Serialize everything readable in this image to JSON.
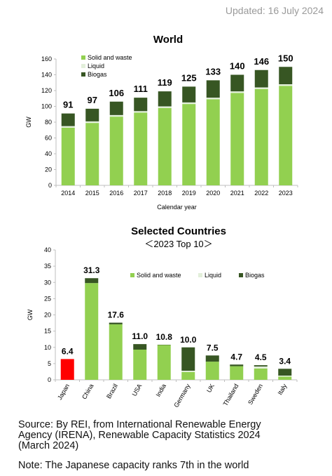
{
  "updated": "Updated: 16 July 2024",
  "colors": {
    "solid": "#92d050",
    "liquid": "#e2efda",
    "biogas": "#375623",
    "japan": "#ff0000",
    "axis": "#bfbfbf"
  },
  "chart_data": [
    {
      "type": "bar",
      "stacked": true,
      "title": "World",
      "xlabel": "Calendar year",
      "ylabel": "GW",
      "ylim": [
        0,
        160
      ],
      "yticks": [
        0,
        20,
        40,
        60,
        80,
        100,
        120,
        140,
        160
      ],
      "categories": [
        "2014",
        "2015",
        "2016",
        "2017",
        "2018",
        "2019",
        "2020",
        "2021",
        "2022",
        "2023"
      ],
      "series": [
        {
          "name": "Solid and waste",
          "values": [
            73,
            79,
            87,
            92,
            98,
            103,
            109,
            117,
            122,
            126
          ]
        },
        {
          "name": "Liquid",
          "values": [
            2,
            2,
            2,
            2,
            2,
            2,
            2,
            2,
            2,
            2
          ]
        },
        {
          "name": "Biogas",
          "values": [
            16,
            16,
            17,
            17,
            19,
            20,
            22,
            21,
            22,
            22
          ]
        }
      ],
      "totals": [
        "91",
        "97",
        "106",
        "111",
        "119",
        "125",
        "133",
        "140",
        "146",
        "150"
      ],
      "legend": "top-left"
    },
    {
      "type": "bar",
      "stacked": true,
      "title": "Selected Countries",
      "subtitle": "＜2023 Top 10＞",
      "xlabel": "",
      "ylabel": "GW",
      "ylim": [
        0,
        40
      ],
      "yticks": [
        0,
        5,
        10,
        15,
        20,
        25,
        30,
        35,
        40
      ],
      "categories": [
        "Japan",
        "China",
        "Brazil",
        "USA",
        "India",
        "Germany",
        "UK",
        "Thailand",
        "Sweden",
        "Italy"
      ],
      "series": [
        {
          "name": "Solid and waste",
          "values": [
            6.4,
            29.8,
            17.1,
            9.3,
            10.7,
            2.4,
            5.6,
            4.2,
            3.5,
            1.0
          ]
        },
        {
          "name": "Liquid",
          "values": [
            0,
            0,
            0,
            0,
            0,
            0.4,
            0,
            0,
            0.6,
            0.3
          ]
        },
        {
          "name": "Biogas",
          "values": [
            0,
            1.5,
            0.5,
            1.7,
            0.1,
            7.2,
            1.9,
            0.5,
            0.4,
            2.1
          ]
        }
      ],
      "totals": [
        "6.4",
        "31.3",
        "17.6",
        "11.0",
        "10.8",
        "10.0",
        "7.5",
        "4.7",
        "4.5",
        "3.4"
      ],
      "highlight_category": "Japan",
      "legend": "top-right"
    }
  ],
  "footer": {
    "source_lines": [
      "Source: By REI, from International Renewable Energy",
      "Agency (IRENA), Renewable Capacity Statistics 2024",
      "(March 2024)"
    ],
    "note": "Note: The Japanese capacity ranks 7th in the world"
  }
}
